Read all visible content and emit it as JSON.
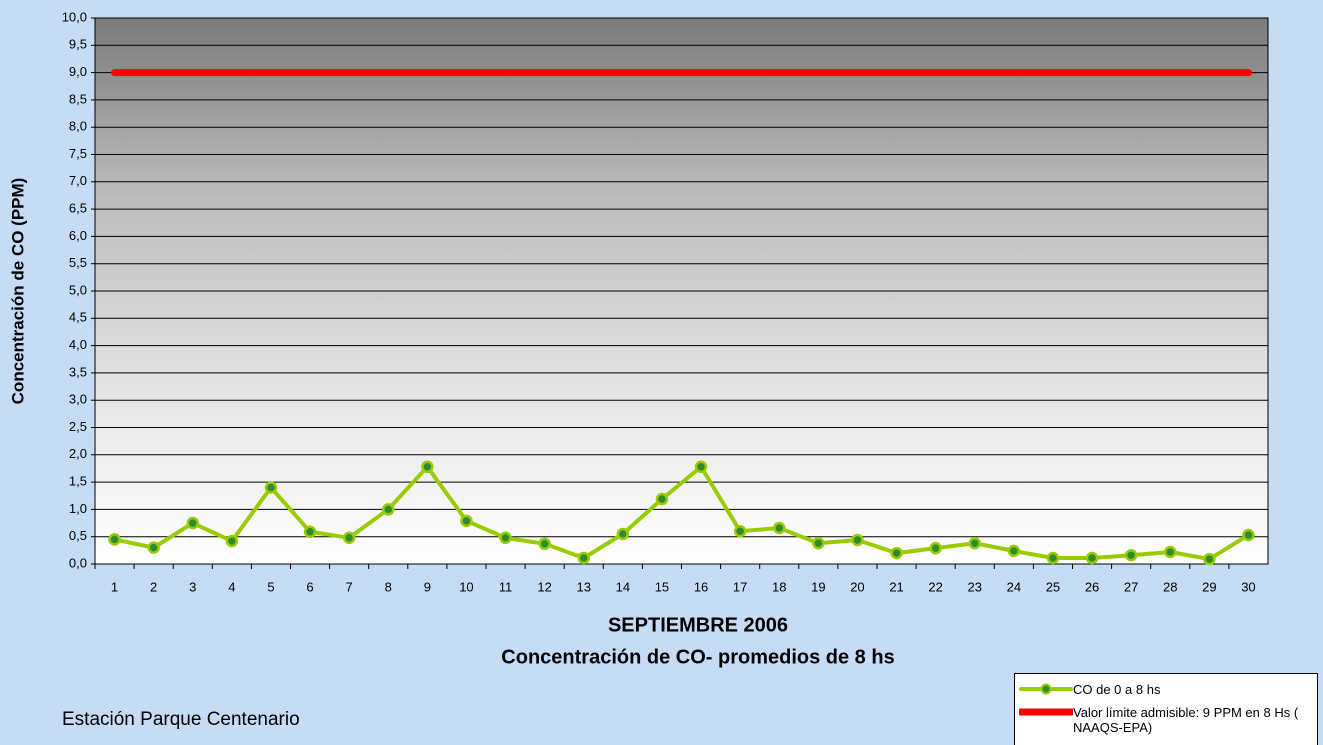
{
  "chart_data": {
    "type": "line",
    "x_label": "SEPTIEMBRE 2006",
    "subtitle": "Concentración de CO- promedios de 8 hs",
    "y_label": "Concentración de CO (PPM)",
    "annotation": "Estación Parque Centenario",
    "categories": [
      "1",
      "2",
      "3",
      "4",
      "5",
      "6",
      "7",
      "8",
      "9",
      "10",
      "11",
      "12",
      "13",
      "14",
      "15",
      "16",
      "17",
      "18",
      "19",
      "20",
      "21",
      "22",
      "23",
      "24",
      "25",
      "26",
      "27",
      "28",
      "29",
      "30"
    ],
    "series": [
      {
        "name": "CO de 0 a 8 hs",
        "color": "#99cc00",
        "marker": true,
        "values": [
          0.45,
          0.3,
          0.75,
          0.42,
          1.4,
          0.59,
          0.48,
          1.0,
          1.78,
          0.79,
          0.48,
          0.37,
          0.11,
          0.55,
          1.19,
          1.78,
          0.6,
          0.66,
          0.38,
          0.44,
          0.2,
          0.29,
          0.38,
          0.24,
          0.11,
          0.11,
          0.16,
          0.22,
          0.09,
          0.53
        ]
      },
      {
        "name": "Valor límite admisible: 9 PPM en 8 Hs ( NAAQS-EPA)",
        "color": "#ff0000",
        "marker": false,
        "values": [
          9,
          9,
          9,
          9,
          9,
          9,
          9,
          9,
          9,
          9,
          9,
          9,
          9,
          9,
          9,
          9,
          9,
          9,
          9,
          9,
          9,
          9,
          9,
          9,
          9,
          9,
          9,
          9,
          9,
          9
        ]
      }
    ],
    "ylim": [
      0,
      10
    ],
    "yticks": [
      {
        "value": 0,
        "label": "0,0"
      },
      {
        "value": 0.5,
        "label": "0,5"
      },
      {
        "value": 1,
        "label": "1,0"
      },
      {
        "value": 1.5,
        "label": "1,5"
      },
      {
        "value": 2,
        "label": "2,0"
      },
      {
        "value": 2.5,
        "label": "2,5"
      },
      {
        "value": 3,
        "label": "3,0"
      },
      {
        "value": 3.5,
        "label": "3,5"
      },
      {
        "value": 4,
        "label": "4,0"
      },
      {
        "value": 4.5,
        "label": "4,5"
      },
      {
        "value": 5,
        "label": "5,0"
      },
      {
        "value": 5.5,
        "label": "5,5"
      },
      {
        "value": 6,
        "label": "6,0"
      },
      {
        "value": 6.5,
        "label": "6,5"
      },
      {
        "value": 7,
        "label": "7,0"
      },
      {
        "value": 7.5,
        "label": "7,5"
      },
      {
        "value": 8,
        "label": "8,0"
      },
      {
        "value": 8.5,
        "label": "8,5"
      },
      {
        "value": 9,
        "label": "9,0"
      },
      {
        "value": 9.5,
        "label": "9,5"
      },
      {
        "value": 10,
        "label": "10,0"
      }
    ],
    "grid": true,
    "legend": "bottom-right"
  }
}
